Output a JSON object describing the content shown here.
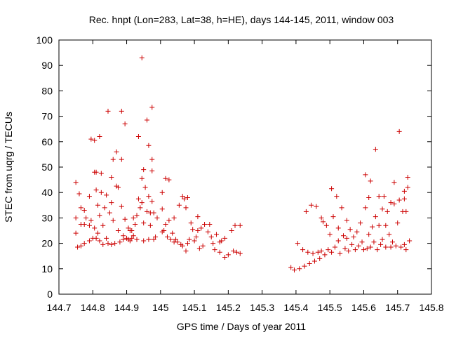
{
  "chart_data": {
    "type": "scatter",
    "title": "Rec. hnpt (Lon=283, Lat=38, h=HE), days 144-145, 2011, window 003",
    "xlabel": "GPS time / Days of year 2011",
    "ylabel": "STEC from uqrg / TECUs",
    "xlim": [
      144.7,
      145.8
    ],
    "ylim": [
      0,
      100
    ],
    "xticks": [
      "144.7",
      "144.8",
      "144.9",
      "145",
      "145.1",
      "145.2",
      "145.3",
      "145.4",
      "145.5",
      "145.6",
      "145.7",
      "145.8"
    ],
    "yticks": [
      "0",
      "10",
      "20",
      "30",
      "40",
      "50",
      "60",
      "70",
      "80",
      "90",
      "100"
    ],
    "marker": "+",
    "color": "#cc0000",
    "grid": false,
    "legend": "none",
    "points": [
      [
        144.75,
        44
      ],
      [
        144.75,
        30
      ],
      [
        144.75,
        24
      ],
      [
        144.755,
        18.5
      ],
      [
        144.76,
        39.5
      ],
      [
        144.765,
        34
      ],
      [
        144.765,
        27.5
      ],
      [
        144.765,
        19
      ],
      [
        144.775,
        33
      ],
      [
        144.775,
        27.5
      ],
      [
        144.775,
        20
      ],
      [
        144.78,
        30
      ],
      [
        144.79,
        38.5
      ],
      [
        144.79,
        27
      ],
      [
        144.79,
        21
      ],
      [
        144.795,
        61
      ],
      [
        144.795,
        29
      ],
      [
        144.8,
        22
      ],
      [
        144.805,
        48
      ],
      [
        144.805,
        26
      ],
      [
        144.805,
        60.5
      ],
      [
        144.81,
        48
      ],
      [
        144.81,
        41
      ],
      [
        144.81,
        22
      ],
      [
        144.815,
        35
      ],
      [
        144.815,
        24
      ],
      [
        144.82,
        62
      ],
      [
        144.82,
        31
      ],
      [
        144.82,
        21
      ],
      [
        144.825,
        40
      ],
      [
        144.825,
        47.5
      ],
      [
        144.83,
        27
      ],
      [
        144.83,
        19.5
      ],
      [
        144.835,
        34
      ],
      [
        144.84,
        39
      ],
      [
        144.84,
        22
      ],
      [
        144.845,
        72
      ],
      [
        144.845,
        20
      ],
      [
        144.85,
        32
      ],
      [
        144.855,
        46
      ],
      [
        144.855,
        36
      ],
      [
        144.855,
        19.5
      ],
      [
        144.86,
        53
      ],
      [
        144.86,
        29
      ],
      [
        144.865,
        20
      ],
      [
        144.87,
        42.5
      ],
      [
        144.87,
        56
      ],
      [
        144.875,
        25
      ],
      [
        144.875,
        42
      ],
      [
        144.88,
        20.5
      ],
      [
        144.885,
        72
      ],
      [
        144.885,
        53
      ],
      [
        144.885,
        34.5
      ],
      [
        144.89,
        23
      ],
      [
        144.89,
        21.5
      ],
      [
        144.895,
        67
      ],
      [
        144.895,
        29.5
      ],
      [
        144.9,
        22
      ],
      [
        144.905,
        26
      ],
      [
        144.905,
        21.5
      ],
      [
        144.91,
        25
      ],
      [
        144.91,
        21
      ],
      [
        144.915,
        25
      ],
      [
        144.915,
        22
      ],
      [
        144.92,
        30
      ],
      [
        144.92,
        23
      ],
      [
        144.925,
        27.5
      ],
      [
        144.93,
        31
      ],
      [
        144.93,
        21.5
      ],
      [
        144.935,
        62
      ],
      [
        144.935,
        37.5
      ],
      [
        144.94,
        34
      ],
      [
        144.945,
        93
      ],
      [
        144.945,
        45.5
      ],
      [
        144.945,
        36
      ],
      [
        144.95,
        49
      ],
      [
        144.95,
        28
      ],
      [
        144.95,
        21
      ],
      [
        144.955,
        42
      ],
      [
        144.96,
        32.5
      ],
      [
        144.96,
        68.5
      ],
      [
        144.965,
        58.5
      ],
      [
        144.965,
        38.5
      ],
      [
        144.965,
        21.5
      ],
      [
        144.97,
        32
      ],
      [
        144.97,
        27
      ],
      [
        144.975,
        73.5
      ],
      [
        144.975,
        53
      ],
      [
        144.975,
        48.5
      ],
      [
        144.975,
        36.5
      ],
      [
        144.98,
        32
      ],
      [
        144.98,
        21.5
      ],
      [
        144.985,
        22.5
      ],
      [
        144.99,
        30
      ],
      [
        145.005,
        33.5
      ],
      [
        145.005,
        40
      ],
      [
        145.005,
        24.5
      ],
      [
        145.01,
        25
      ],
      [
        145.015,
        45.5
      ],
      [
        145.015,
        27.5
      ],
      [
        145.02,
        22.5
      ],
      [
        145.025,
        45
      ],
      [
        145.025,
        29
      ],
      [
        145.03,
        21.5
      ],
      [
        145.035,
        24
      ],
      [
        145.04,
        30
      ],
      [
        145.04,
        20.5
      ],
      [
        145.045,
        21.5
      ],
      [
        145.05,
        20.5
      ],
      [
        145.055,
        35
      ],
      [
        145.06,
        19.5
      ],
      [
        145.065,
        38.5
      ],
      [
        145.065,
        19
      ],
      [
        145.07,
        37.5
      ],
      [
        145.075,
        34
      ],
      [
        145.075,
        17
      ],
      [
        145.08,
        38
      ],
      [
        145.08,
        20
      ],
      [
        145.085,
        21.5
      ],
      [
        145.09,
        28
      ],
      [
        145.095,
        25.5
      ],
      [
        145.1,
        21
      ],
      [
        145.105,
        22.5
      ],
      [
        145.11,
        30.5
      ],
      [
        145.11,
        25
      ],
      [
        145.115,
        18
      ],
      [
        145.12,
        26
      ],
      [
        145.125,
        19
      ],
      [
        145.13,
        27.5
      ],
      [
        145.14,
        24.5
      ],
      [
        145.145,
        27.5
      ],
      [
        145.15,
        22.5
      ],
      [
        145.155,
        20
      ],
      [
        145.16,
        17.5
      ],
      [
        145.165,
        23.5
      ],
      [
        145.175,
        20.5
      ],
      [
        145.175,
        16.5
      ],
      [
        145.18,
        21
      ],
      [
        145.19,
        22
      ],
      [
        145.19,
        14.5
      ],
      [
        145.2,
        15.5
      ],
      [
        145.21,
        25
      ],
      [
        145.215,
        17
      ],
      [
        145.22,
        27
      ],
      [
        145.225,
        16.5
      ],
      [
        145.235,
        16
      ],
      [
        145.235,
        27
      ],
      [
        145.385,
        10.5
      ],
      [
        145.395,
        9.5
      ],
      [
        145.405,
        20
      ],
      [
        145.41,
        10
      ],
      [
        145.42,
        17.5
      ],
      [
        145.425,
        11
      ],
      [
        145.43,
        32.5
      ],
      [
        145.435,
        16.5
      ],
      [
        145.44,
        12
      ],
      [
        145.445,
        35
      ],
      [
        145.45,
        16
      ],
      [
        145.455,
        13
      ],
      [
        145.46,
        34.5
      ],
      [
        145.465,
        16.5
      ],
      [
        145.47,
        14
      ],
      [
        145.475,
        30
      ],
      [
        145.475,
        17
      ],
      [
        145.48,
        28.5
      ],
      [
        145.485,
        15.5
      ],
      [
        145.49,
        27
      ],
      [
        145.495,
        17.5
      ],
      [
        145.5,
        23.5
      ],
      [
        145.505,
        41.5
      ],
      [
        145.505,
        16.5
      ],
      [
        145.51,
        30.5
      ],
      [
        145.515,
        18.5
      ],
      [
        145.52,
        38.5
      ],
      [
        145.525,
        26
      ],
      [
        145.525,
        21
      ],
      [
        145.53,
        16
      ],
      [
        145.535,
        34
      ],
      [
        145.54,
        23
      ],
      [
        145.545,
        18
      ],
      [
        145.55,
        29
      ],
      [
        145.55,
        22
      ],
      [
        145.555,
        17
      ],
      [
        145.56,
        25.5
      ],
      [
        145.565,
        19.5
      ],
      [
        145.57,
        22.5
      ],
      [
        145.575,
        17.5
      ],
      [
        145.58,
        24.5
      ],
      [
        145.585,
        19
      ],
      [
        145.59,
        28
      ],
      [
        145.595,
        20.5
      ],
      [
        145.6,
        17.5
      ],
      [
        145.605,
        47
      ],
      [
        145.605,
        34
      ],
      [
        145.61,
        18
      ],
      [
        145.615,
        38
      ],
      [
        145.615,
        23.5
      ],
      [
        145.62,
        44.5
      ],
      [
        145.62,
        18.5
      ],
      [
        145.625,
        26.5
      ],
      [
        145.63,
        20.5
      ],
      [
        145.635,
        57
      ],
      [
        145.635,
        30.5
      ],
      [
        145.64,
        17.5
      ],
      [
        145.645,
        38.5
      ],
      [
        145.645,
        27
      ],
      [
        145.65,
        19.5
      ],
      [
        145.655,
        33.5
      ],
      [
        145.655,
        21.5
      ],
      [
        145.66,
        38.5
      ],
      [
        145.665,
        27
      ],
      [
        145.665,
        18.5
      ],
      [
        145.67,
        32.5
      ],
      [
        145.675,
        23.5
      ],
      [
        145.68,
        36
      ],
      [
        145.68,
        18.5
      ],
      [
        145.685,
        20.5
      ],
      [
        145.69,
        35.5
      ],
      [
        145.69,
        44
      ],
      [
        145.695,
        19
      ],
      [
        145.7,
        28
      ],
      [
        145.705,
        64
      ],
      [
        145.705,
        37
      ],
      [
        145.71,
        18.5
      ],
      [
        145.715,
        32.5
      ],
      [
        145.72,
        40.5
      ],
      [
        145.72,
        37.5
      ],
      [
        145.72,
        19.5
      ],
      [
        145.725,
        32.5
      ],
      [
        145.725,
        17.5
      ],
      [
        145.73,
        46
      ],
      [
        145.73,
        42
      ],
      [
        145.735,
        21
      ]
    ]
  }
}
